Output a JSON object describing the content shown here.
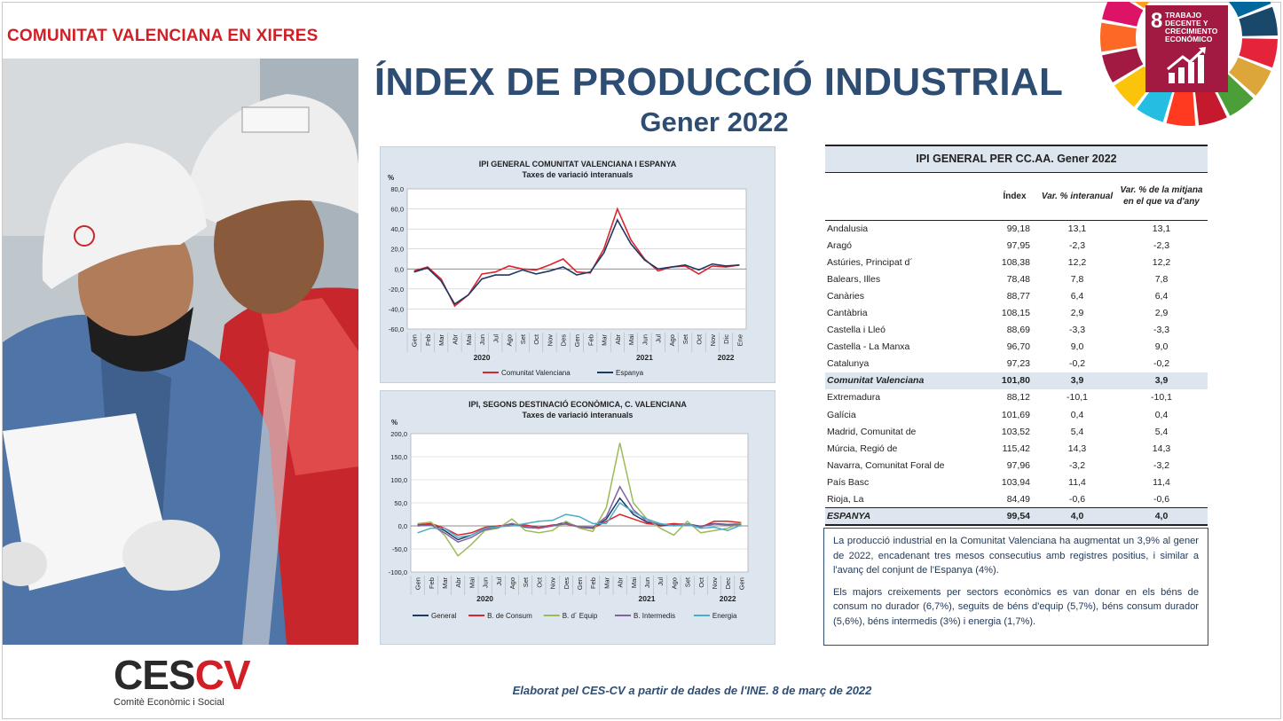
{
  "header": {
    "brand": "COMUNITAT VALENCIANA EN XIFRES",
    "title": "ÍNDEX DE PRODUCCIÓ INDUSTRIAL",
    "subtitle": "Gener 2022"
  },
  "sdg": {
    "number": "8",
    "text": "TRABAJO DECENTE Y CRECIMIENTO ECONÓMICO",
    "color": "#a21942",
    "icon": "growth-chart-icon"
  },
  "photo": {
    "icon": "workers-photo"
  },
  "chart1": {
    "title": "IPI GENERAL COMUNITAT VALENCIANA I ESPANYA",
    "subtitle": "Taxes de variació interanuals",
    "unit": "%",
    "years": [
      "2020",
      "2021",
      "2022"
    ]
  },
  "chart2": {
    "title": "IPI, SEGONS DESTINACIÓ ECONÒMICA,  C. VALENCIANA",
    "subtitle": "Taxes de variació interanuals",
    "unit": "%",
    "years": [
      "2020",
      "2021",
      "2022"
    ]
  },
  "chart_data": [
    {
      "type": "line",
      "title": "IPI GENERAL COMUNITAT VALENCIANA I ESPANYA",
      "subtitle": "Taxes de variació interanuals",
      "ylabel": "%",
      "ylim": [
        -60,
        80
      ],
      "yticks": [
        "80,0",
        "60,0",
        "40,0",
        "20,0",
        "0,0",
        "-20,0",
        "-40,0",
        "-60,0"
      ],
      "categories": [
        "Gen",
        "Feb",
        "Mar",
        "Abr",
        "Mai",
        "Jun",
        "Jul",
        "Ago",
        "Set",
        "Oct",
        "Nov",
        "Des",
        "Gen",
        "Feb",
        "Mar",
        "Abr",
        "Mai",
        "Jun",
        "Jul",
        "Ago",
        "Set",
        "Oct",
        "Nov",
        "Dic",
        "Ene"
      ],
      "legend_position": "bottom",
      "grid": true,
      "series": [
        {
          "name": "Comunitat Valenciana",
          "color": "#d9262e",
          "values": [
            -2,
            2,
            -10,
            -37,
            -26,
            -5,
            -3,
            3,
            0,
            -1,
            4,
            10,
            -3,
            -4,
            20,
            60,
            29,
            10,
            -2,
            2,
            3,
            -5,
            3,
            2,
            4
          ]
        },
        {
          "name": "Espanya",
          "color": "#1f3864",
          "values": [
            -3,
            1,
            -12,
            -35,
            -26,
            -10,
            -6,
            -6,
            -1,
            -5,
            -2,
            2,
            -6,
            -3,
            16,
            49,
            25,
            9,
            0,
            2,
            4,
            -1,
            5,
            3,
            4
          ]
        }
      ]
    },
    {
      "type": "line",
      "title": "IPI, SEGONS DESTINACIÓ ECONÒMICA,  C. VALENCIANA",
      "subtitle": "Taxes de variació interanuals",
      "ylabel": "%",
      "ylim": [
        -100,
        200
      ],
      "yticks": [
        "200,0",
        "150,0",
        "100,0",
        "50,0",
        "0,0",
        "-50,0",
        "-100,0"
      ],
      "categories": [
        "Gen",
        "Feb",
        "Mar",
        "Abr",
        "Mai",
        "Jun",
        "Jul",
        "Ago",
        "Set",
        "Oct",
        "Nov",
        "Des",
        "Gen",
        "Feb",
        "Mar",
        "Abr",
        "Mai",
        "Jun",
        "Jul",
        "Ago",
        "Set",
        "Oct",
        "Nov",
        "Dec",
        "Gen"
      ],
      "legend_position": "bottom",
      "grid": true,
      "series": [
        {
          "name": "General",
          "color": "#1f3864",
          "values": [
            2,
            4,
            -10,
            -30,
            -20,
            -5,
            -2,
            5,
            -3,
            -5,
            0,
            8,
            -3,
            -5,
            15,
            60,
            25,
            8,
            0,
            3,
            4,
            -1,
            5,
            3,
            4
          ]
        },
        {
          "name": "B. de Consum",
          "color": "#d9262e",
          "values": [
            3,
            5,
            -5,
            -20,
            -15,
            -3,
            0,
            3,
            2,
            -3,
            2,
            4,
            -3,
            -5,
            10,
            25,
            15,
            5,
            2,
            5,
            3,
            -3,
            10,
            10,
            7
          ]
        },
        {
          "name": "B. d´ Equip",
          "color": "#9bbb59",
          "values": [
            5,
            8,
            -20,
            -65,
            -40,
            -10,
            -5,
            15,
            -10,
            -15,
            -10,
            10,
            -5,
            -12,
            40,
            180,
            50,
            15,
            -5,
            -20,
            10,
            -15,
            -10,
            -5,
            6
          ]
        },
        {
          "name": "B. Intermedis",
          "color": "#8064a2",
          "values": [
            0,
            2,
            -15,
            -35,
            -25,
            -8,
            -3,
            5,
            -2,
            -5,
            0,
            5,
            -2,
            -3,
            20,
            85,
            35,
            10,
            3,
            2,
            3,
            -2,
            4,
            2,
            3
          ]
        },
        {
          "name": "Energia",
          "color": "#4bacc6",
          "values": [
            -15,
            -5,
            -5,
            -25,
            -20,
            -5,
            -2,
            0,
            5,
            10,
            12,
            25,
            20,
            5,
            5,
            50,
            30,
            15,
            5,
            0,
            3,
            -5,
            -3,
            -10,
            2
          ]
        }
      ]
    },
    {
      "type": "table",
      "title": "IPI GENERAL PER CC.AA. Gener 2022",
      "columns": [
        "",
        "Índex",
        "Var. % interanual",
        "Var. %  de la mitjana en el que va d'any"
      ],
      "rows": [
        [
          "Andalusia",
          "99,18",
          "13,1",
          "13,1"
        ],
        [
          "Aragó",
          "97,95",
          "-2,3",
          "-2,3"
        ],
        [
          "Astúries, Principat d´",
          "108,38",
          "12,2",
          "12,2"
        ],
        [
          "Balears, Illes",
          "78,48",
          "7,8",
          "7,8"
        ],
        [
          "Canàries",
          "88,77",
          "6,4",
          "6,4"
        ],
        [
          "Cantàbria",
          "108,15",
          "2,9",
          "2,9"
        ],
        [
          "Castella i Lleó",
          "88,69",
          "-3,3",
          "-3,3"
        ],
        [
          "Castella - La Manxa",
          "96,70",
          "9,0",
          "9,0"
        ],
        [
          "Catalunya",
          "97,23",
          "-0,2",
          "-0,2"
        ],
        [
          "Comunitat Valenciana",
          "101,80",
          "3,9",
          "3,9"
        ],
        [
          "Extremadura",
          "88,12",
          "-10,1",
          "-10,1"
        ],
        [
          "Galícia",
          "101,69",
          "0,4",
          "0,4"
        ],
        [
          "Madrid, Comunitat de",
          "103,52",
          "5,4",
          "5,4"
        ],
        [
          "Múrcia, Regió de",
          "115,42",
          "14,3",
          "14,3"
        ],
        [
          "Navarra, Comunitat Foral de",
          "97,96",
          "-3,2",
          "-3,2"
        ],
        [
          "País Basc",
          "103,94",
          "11,4",
          "11,4"
        ],
        [
          "Rioja, La",
          "84,49",
          "-0,6",
          "-0,6"
        ],
        [
          "ESPANYA",
          "99,54",
          "4,0",
          "4,0"
        ]
      ]
    }
  ],
  "table": {
    "title": "IPI GENERAL PER CC.AA. Gener 2022",
    "col_index": "Índex",
    "col_var": "Var. % interanual",
    "col_avg": "Var. %  de la mitjana en el que va d'any"
  },
  "text": {
    "p1": "La producció industrial en la Comunitat Valenciana ha augmentat un 3,9% al gener de 2022, encadenant tres mesos consecutius amb registres positius, i similar a l'avanç del conjunt de l'Espanya (4%).",
    "p2": "Els majors creixements per sectors econòmics es van donar en els béns de consum no durador (6,7%), seguits de béns d'equip (5,7%), béns consum durador (5,6%), béns intermedis (3%) i energia (1,7%)."
  },
  "logo": {
    "ces": "CES",
    "cv": "CV",
    "subtitle": "Comitè Econòmic i Social"
  },
  "footer": "Elaborat pel CES-CV a partir de dades de l'INE. 8 de març de 2022"
}
